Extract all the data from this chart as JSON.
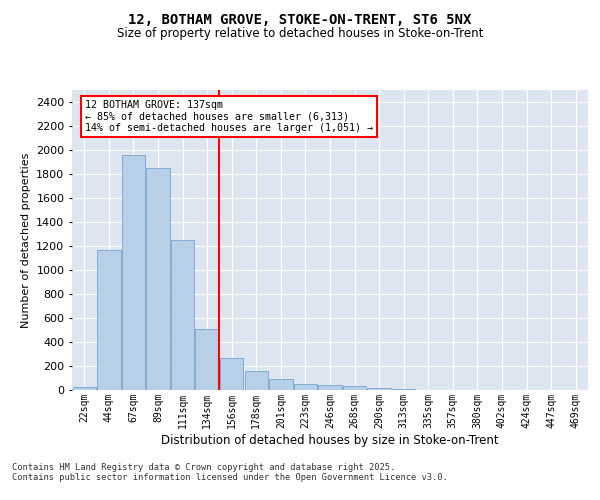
{
  "title1": "12, BOTHAM GROVE, STOKE-ON-TRENT, ST6 5NX",
  "title2": "Size of property relative to detached houses in Stoke-on-Trent",
  "xlabel": "Distribution of detached houses by size in Stoke-on-Trent",
  "ylabel": "Number of detached properties",
  "categories": [
    "22sqm",
    "44sqm",
    "67sqm",
    "89sqm",
    "111sqm",
    "134sqm",
    "156sqm",
    "178sqm",
    "201sqm",
    "223sqm",
    "246sqm",
    "268sqm",
    "290sqm",
    "313sqm",
    "335sqm",
    "357sqm",
    "380sqm",
    "402sqm",
    "424sqm",
    "447sqm",
    "469sqm"
  ],
  "values": [
    25,
    1170,
    1960,
    1850,
    1250,
    510,
    270,
    160,
    95,
    48,
    38,
    30,
    15,
    5,
    2,
    1,
    1,
    0,
    0,
    0,
    0
  ],
  "bar_color": "#b8cfe8",
  "bar_edge_color": "#6699cc",
  "vline_color": "red",
  "annotation_title": "12 BOTHAM GROVE: 137sqm",
  "annotation_line1": "← 85% of detached houses are smaller (6,313)",
  "annotation_line2": "14% of semi-detached houses are larger (1,051) →",
  "annotation_box_color": "red",
  "ylim": [
    0,
    2500
  ],
  "yticks": [
    0,
    200,
    400,
    600,
    800,
    1000,
    1200,
    1400,
    1600,
    1800,
    2000,
    2200,
    2400
  ],
  "background_color": "#dde6f0",
  "grid_color": "#ffffff",
  "footer1": "Contains HM Land Registry data © Crown copyright and database right 2025.",
  "footer2": "Contains public sector information licensed under the Open Government Licence v3.0."
}
